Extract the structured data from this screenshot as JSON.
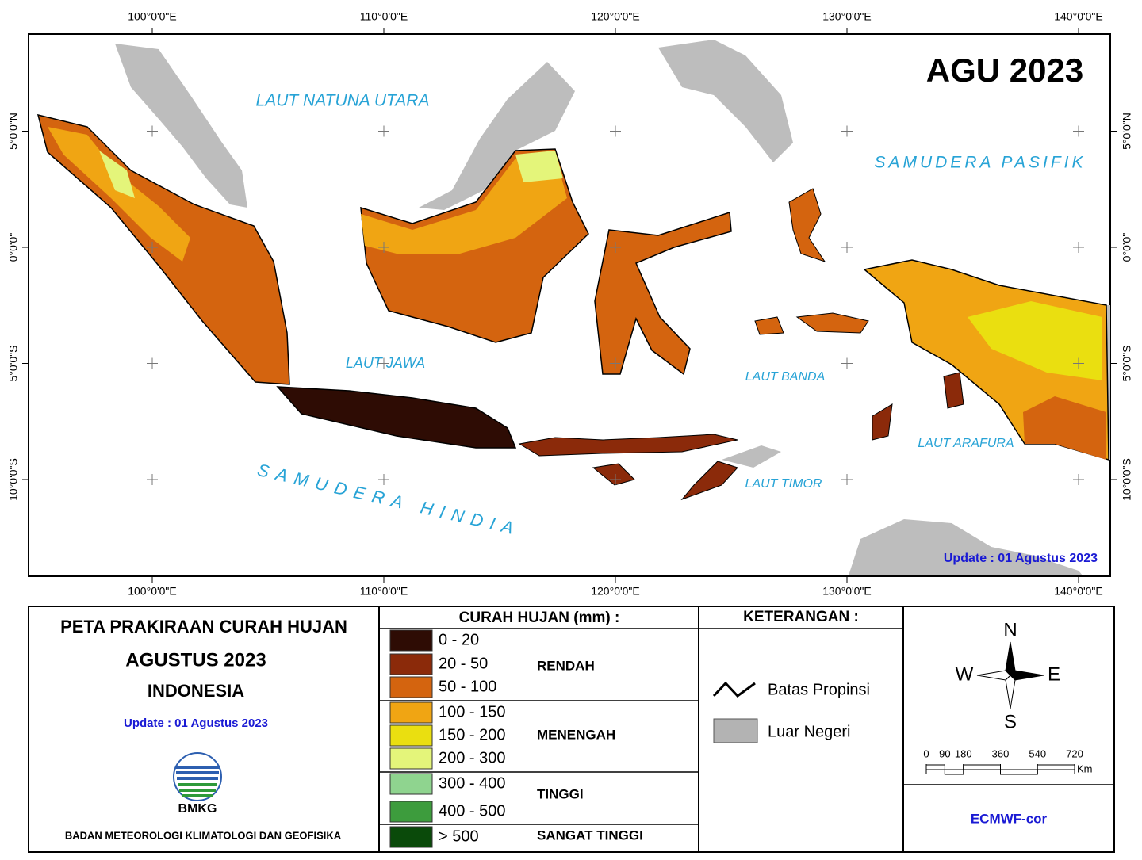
{
  "map": {
    "title": "AGU 2023",
    "update": "Update : 01 Agustus  2023",
    "longitudes": [
      {
        "value": 100,
        "label": "100°0'0\"E"
      },
      {
        "value": 110,
        "label": "110°0'0\"E"
      },
      {
        "value": 120,
        "label": "120°0'0\"E"
      },
      {
        "value": 130,
        "label": "130°0'0\"E"
      },
      {
        "value": 140,
        "label": "140°0'0\"E"
      }
    ],
    "latitudes": [
      {
        "value": 5,
        "label": "5°0'0\"N"
      },
      {
        "value": 0,
        "label": "0°0'0\""
      },
      {
        "value": -5,
        "label": "5°0'0\"S"
      },
      {
        "value": -10,
        "label": "10°0'0\"S"
      }
    ],
    "seas": [
      "LAUT NATUNA UTARA",
      "SAMUDERA PASIFIK",
      "LAUT JAWA",
      "LAUT BANDA",
      "SAMUDERA HINDIA",
      "LAUT ARAFURA",
      "LAUT TIMOR"
    ]
  },
  "info": {
    "title": "PETA PRAKIRAAN CURAH HUJAN",
    "period": "AGUSTUS 2023",
    "region": "INDONESIA",
    "update": "Update : 01 Agustus  2023",
    "logo": "BMKG",
    "agency": "BADAN METEOROLOGI KLIMATOLOGI DAN GEOFISIKA"
  },
  "legend": {
    "title": "CURAH HUJAN (mm) :",
    "classes": [
      {
        "label": "0 - 20",
        "color": "#2e0c04"
      },
      {
        "label": "20 - 50",
        "color": "#8b2a0a"
      },
      {
        "label": "50 - 100",
        "color": "#d4640f"
      },
      {
        "label": "100 - 150",
        "color": "#f0a513"
      },
      {
        "label": "150 - 200",
        "color": "#eadf10"
      },
      {
        "label": "200 - 300",
        "color": "#e4f57a"
      },
      {
        "label": "300 - 400",
        "color": "#8fd48f"
      },
      {
        "label": "400 - 500",
        "color": "#3d9c3d"
      },
      {
        "label": "> 500",
        "color": "#0a4a0a"
      }
    ],
    "groups": [
      "RENDAH",
      "MENENGAH",
      "TINGGI",
      "SANGAT TINGGI"
    ]
  },
  "keterangan": {
    "title": "KETERANGAN :",
    "items": [
      {
        "label": "Batas Propinsi"
      },
      {
        "label": "Luar Negeri",
        "color": "#b3b3b3"
      }
    ]
  },
  "compass": {
    "north": "N",
    "west": "W",
    "east": "E",
    "south": "S"
  },
  "scale": {
    "ticks": [
      0,
      90,
      180,
      360,
      540,
      720
    ],
    "unit": "Km"
  },
  "source": "ECMWF-cor"
}
